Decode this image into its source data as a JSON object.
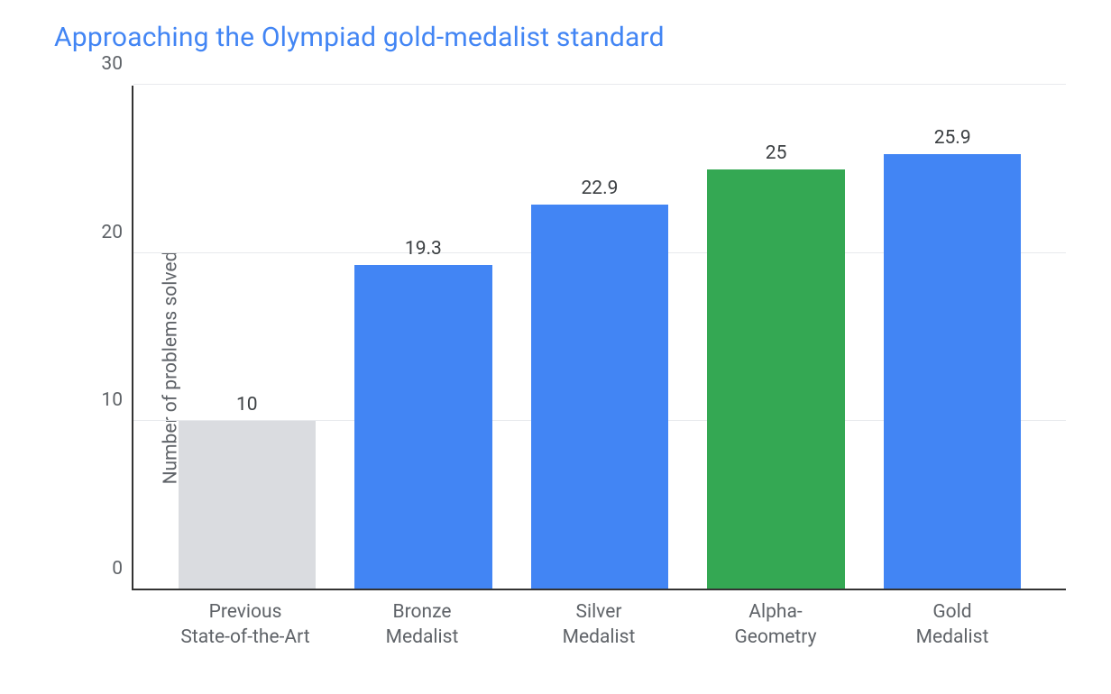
{
  "chart": {
    "type": "bar",
    "title": "Approaching the Olympiad gold-medalist standard",
    "title_color": "#4285f4",
    "title_fontsize": 30,
    "ylabel": "Number of problems solved",
    "label_fontsize": 21,
    "label_color": "#5f6368",
    "ylim": [
      0,
      30
    ],
    "yticks": [
      0,
      10,
      20,
      30
    ],
    "grid_color": "#e8eaed",
    "axis_color": "#333333",
    "background_color": "#ffffff",
    "bar_width": 0.78,
    "value_label_fontsize": 21,
    "value_label_color": "#3c4043",
    "categories": [
      {
        "label": "Previous\nState-of-the-Art",
        "value": 10,
        "value_text": "10",
        "color": "#dadce0"
      },
      {
        "label": "Bronze\nMedalist",
        "value": 19.3,
        "value_text": "19.3",
        "color": "#4285f4"
      },
      {
        "label": "Silver\nMedalist",
        "value": 22.9,
        "value_text": "22.9",
        "color": "#4285f4"
      },
      {
        "label": "Alpha-\nGeometry",
        "value": 25,
        "value_text": "25",
        "color": "#34a853"
      },
      {
        "label": "Gold\nMedalist",
        "value": 25.9,
        "value_text": "25.9",
        "color": "#4285f4"
      }
    ]
  }
}
